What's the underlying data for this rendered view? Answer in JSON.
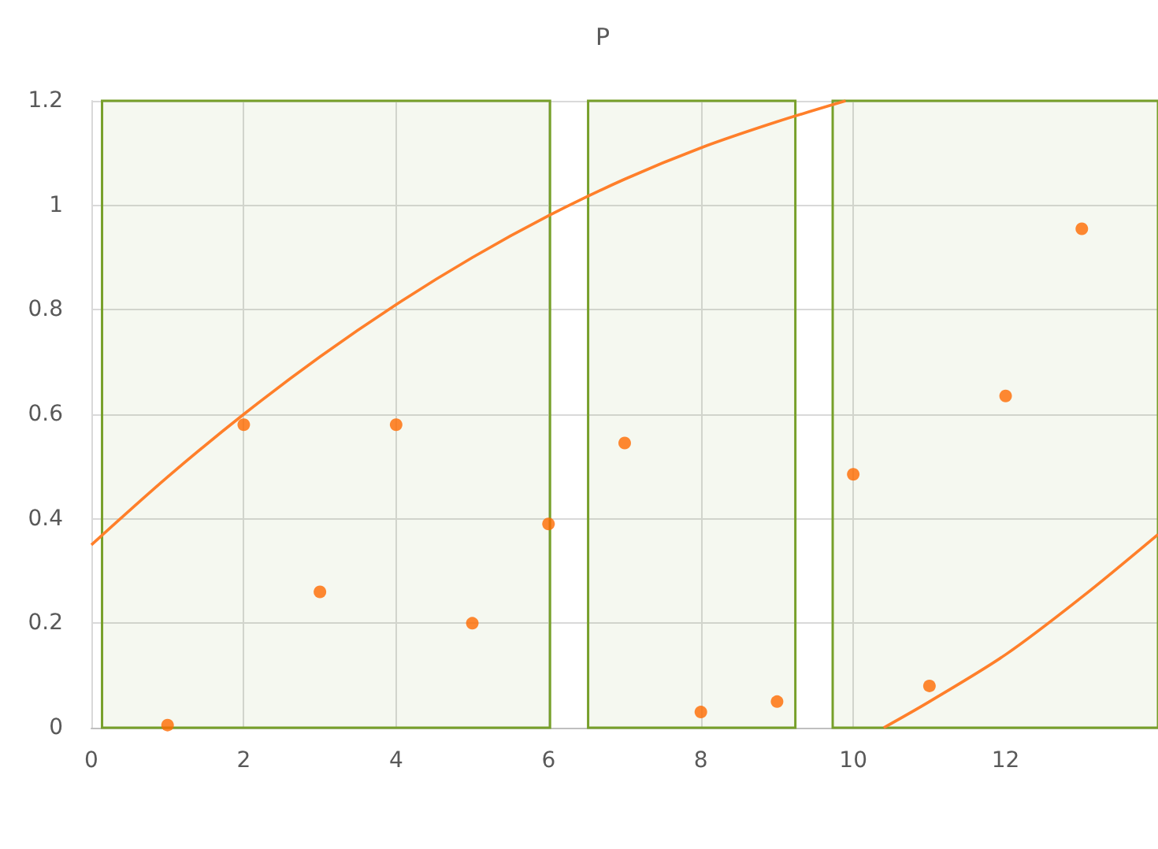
{
  "chart_data": {
    "type": "scatter",
    "series": [
      {
        "color": "#ff6a00",
        "x": [
          1,
          2,
          3,
          4,
          5,
          6,
          7,
          8,
          9,
          10,
          11,
          12,
          13
        ],
        "values": [
          0.005,
          0.58,
          0.26,
          0.58,
          0.2,
          0.39,
          0.545,
          0.03,
          0.05,
          0.485,
          0.08,
          0.635,
          0.955
        ]
      },
      {
        "type": "line",
        "marker": "none",
        "color": "#ff7f2a",
        "x": [
          0,
          1,
          2,
          3,
          4,
          5,
          6,
          7,
          8,
          9,
          9.9
        ],
        "values": [
          0.35,
          0.48,
          0.6,
          0.71,
          0.81,
          0.9,
          0.98,
          1.05,
          1.11,
          1.16,
          1.2
        ]
      },
      {
        "type": "line",
        "marker": "none",
        "color": "#ff7f2a",
        "x": [
          10.4,
          11,
          12,
          13,
          14
        ],
        "values": [
          0,
          0.05,
          0.14,
          0.25,
          0.37
        ]
      }
    ],
    "bands": [
      {
        "axis": "x",
        "from": 0.14,
        "to": 6.02,
        "color": "#77a02a"
      },
      {
        "axis": "x",
        "from": 6.52,
        "to": 9.24,
        "color": "#77a02a"
      },
      {
        "axis": "x",
        "from": 9.73,
        "to": 14,
        "color": "#77a02a"
      }
    ],
    "xlim": [
      0,
      14
    ],
    "xticks": [
      0,
      2,
      4,
      6,
      8,
      10,
      12
    ],
    "ylim": [
      0,
      1.2
    ],
    "yticks": [
      0,
      0.2,
      0.4,
      0.6,
      0.8,
      1,
      1.2
    ],
    "grid": true,
    "marker": "circle",
    "annotations": [
      "P"
    ]
  }
}
